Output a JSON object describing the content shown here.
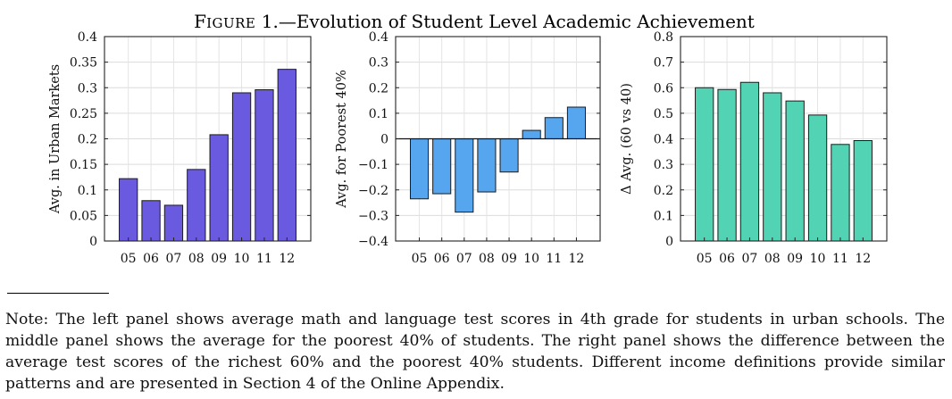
{
  "figure": {
    "title_prefix": "F",
    "title_smallcaps": "IGURE",
    "title_number": " 1.",
    "title_text": "—Evolution of Student Level Academic Achievement"
  },
  "note": "Note: The left panel shows average math and language test scores in 4th grade for students in urban schools. The middle panel shows the average for the poorest 40% of students. The right panel shows the difference between the average test scores of the richest 60% and the poorest 40% students. Different income definitions provide similar patterns and are presented in Section 4 of the Online Appendix.",
  "chart_data": [
    {
      "type": "bar",
      "title": "",
      "xlabel": "",
      "ylabel": "Avg. in Urban Markets",
      "categories": [
        "05",
        "06",
        "07",
        "08",
        "09",
        "10",
        "11",
        "12"
      ],
      "values": [
        0.122,
        0.079,
        0.07,
        0.14,
        0.208,
        0.29,
        0.296,
        0.336
      ],
      "ylim": [
        0,
        0.4
      ],
      "yticks": [
        0,
        0.05,
        0.1,
        0.15,
        0.2,
        0.25,
        0.3,
        0.35,
        0.4
      ],
      "ytick_labels": [
        "0",
        "0.05",
        "0.1",
        "0.15",
        "0.2",
        "0.25",
        "0.3",
        "0.35",
        "0.4"
      ],
      "grid": true,
      "color": "#6a5ae0"
    },
    {
      "type": "bar",
      "title": "",
      "xlabel": "",
      "ylabel": "Avg. for Poorest 40%",
      "categories": [
        "05",
        "06",
        "07",
        "08",
        "09",
        "10",
        "11",
        "12"
      ],
      "values": [
        -0.235,
        -0.215,
        -0.287,
        -0.208,
        -0.13,
        0.033,
        0.083,
        0.124
      ],
      "ylim": [
        -0.4,
        0.4
      ],
      "yticks": [
        -0.4,
        -0.3,
        -0.2,
        -0.1,
        0,
        0.1,
        0.2,
        0.3,
        0.4
      ],
      "ytick_labels": [
        "−0.4",
        "−0.3",
        "−0.2",
        "−0.1",
        "0",
        "0.1",
        "0.2",
        "0.3",
        "0.4"
      ],
      "grid": true,
      "zero_line": true,
      "color": "#55a6ef"
    },
    {
      "type": "bar",
      "title": "",
      "xlabel": "",
      "ylabel": "Δ Avg. (60 vs 40)",
      "categories": [
        "05",
        "06",
        "07",
        "08",
        "09",
        "10",
        "11",
        "12"
      ],
      "values": [
        0.6,
        0.593,
        0.621,
        0.58,
        0.548,
        0.493,
        0.378,
        0.393
      ],
      "ylim": [
        0,
        0.8
      ],
      "yticks": [
        0,
        0.1,
        0.2,
        0.3,
        0.4,
        0.5,
        0.6,
        0.7,
        0.8
      ],
      "ytick_labels": [
        "0",
        "0.1",
        "0.2",
        "0.3",
        "0.4",
        "0.5",
        "0.6",
        "0.7",
        "0.8"
      ],
      "grid": true,
      "color": "#52d4b4"
    }
  ]
}
